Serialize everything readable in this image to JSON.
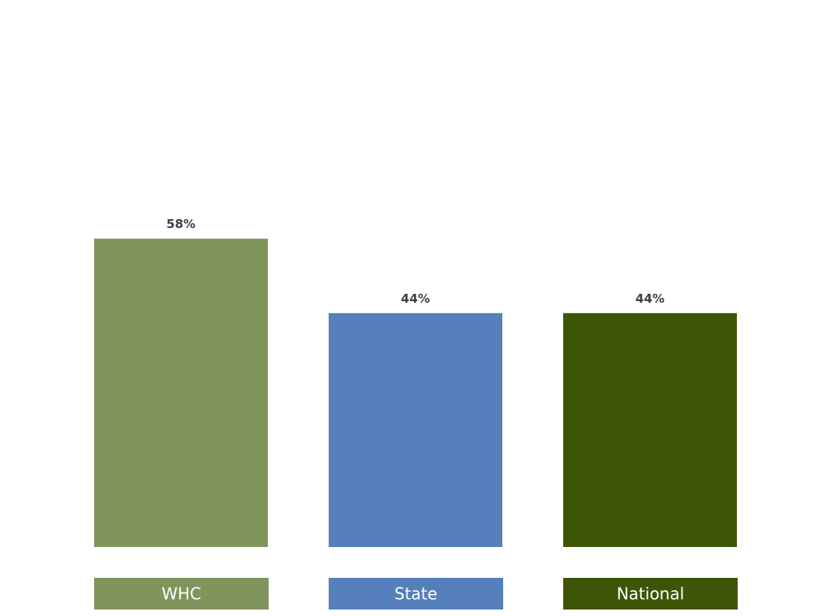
{
  "chart_data": {
    "type": "bar",
    "categories": [
      "WHC",
      "State",
      "National"
    ],
    "values": [
      58,
      44,
      44
    ],
    "data_labels": [
      "58%",
      "44%",
      "44%"
    ],
    "colors": [
      "#7f955b",
      "#557fbb",
      "#3e5507"
    ],
    "ylim": [
      0,
      100
    ],
    "grid": false,
    "legend": {
      "placement": "bottom",
      "entries": [
        "WHC",
        "State",
        "National"
      ]
    }
  }
}
